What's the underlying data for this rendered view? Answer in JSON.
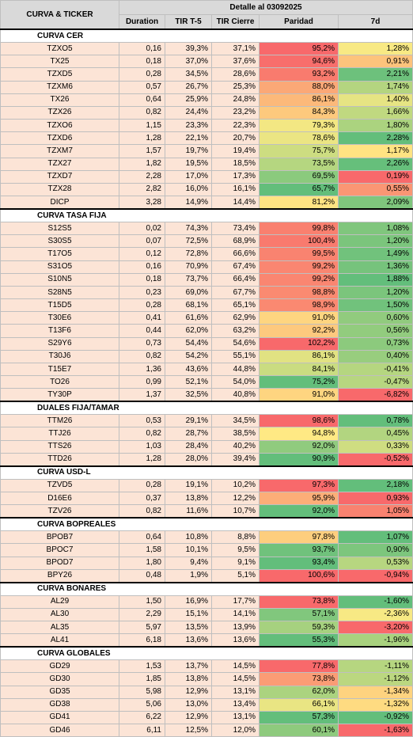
{
  "header": {
    "title_col": "CURVA & TICKER",
    "detail": "Detalle al 03092025",
    "columns": [
      "Duration",
      "TIR T-5",
      "TIR Cierre",
      "Paridad",
      "7d"
    ]
  },
  "sections": [
    {
      "title": "CURVA CER",
      "rows": [
        [
          "TZXO5",
          "0,16",
          "39,3%",
          "37,1%",
          "95,2%",
          "1,28%"
        ],
        [
          "TX25",
          "0,18",
          "37,0%",
          "37,6%",
          "94,6%",
          "0,91%"
        ],
        [
          "TZXD5",
          "0,28",
          "34,5%",
          "28,6%",
          "93,2%",
          "2,21%"
        ],
        [
          "TZXM6",
          "0,57",
          "26,7%",
          "25,3%",
          "88,0%",
          "1,74%"
        ],
        [
          "TX26",
          "0,64",
          "25,9%",
          "24,8%",
          "86,1%",
          "1,40%"
        ],
        [
          "TZX26",
          "0,82",
          "24,4%",
          "23,2%",
          "84,3%",
          "1,66%"
        ],
        [
          "TZXO6",
          "1,15",
          "23,3%",
          "22,3%",
          "79,3%",
          "1,80%"
        ],
        [
          "TZXD6",
          "1,28",
          "22,1%",
          "20,7%",
          "78,6%",
          "2,28%"
        ],
        [
          "TZXM7",
          "1,57",
          "19,7%",
          "19,4%",
          "75,7%",
          "1,17%"
        ],
        [
          "TZX27",
          "1,82",
          "19,5%",
          "18,5%",
          "73,5%",
          "2,26%"
        ],
        [
          "TZXD7",
          "2,28",
          "17,0%",
          "17,3%",
          "69,5%",
          "0,19%"
        ],
        [
          "TZX28",
          "2,82",
          "16,0%",
          "16,1%",
          "65,7%",
          "0,55%"
        ],
        [
          "DICP",
          "3,28",
          "14,9%",
          "14,4%",
          "81,2%",
          "2,09%"
        ]
      ]
    },
    {
      "title": "CURVA TASA FIJA",
      "rows": [
        [
          "S12S5",
          "0,02",
          "74,3%",
          "73,4%",
          "99,8%",
          "1,08%"
        ],
        [
          "S30S5",
          "0,07",
          "72,5%",
          "68,9%",
          "100,4%",
          "1,20%"
        ],
        [
          "T17O5",
          "0,12",
          "72,8%",
          "66,6%",
          "99,5%",
          "1,49%"
        ],
        [
          "S31O5",
          "0,16",
          "70,9%",
          "67,4%",
          "99,2%",
          "1,36%"
        ],
        [
          "S10N5",
          "0,18",
          "73,7%",
          "66,4%",
          "99,2%",
          "1,88%"
        ],
        [
          "S28N5",
          "0,23",
          "69,0%",
          "67,7%",
          "98,8%",
          "1,20%"
        ],
        [
          "T15D5",
          "0,28",
          "68,1%",
          "65,1%",
          "98,9%",
          "1,50%"
        ],
        [
          "T30E6",
          "0,41",
          "61,6%",
          "62,9%",
          "91,0%",
          "0,60%"
        ],
        [
          "T13F6",
          "0,44",
          "62,0%",
          "63,2%",
          "92,2%",
          "0,56%"
        ],
        [
          "S29Y6",
          "0,73",
          "54,4%",
          "54,6%",
          "102,2%",
          "0,73%"
        ],
        [
          "T30J6",
          "0,82",
          "54,2%",
          "55,1%",
          "86,1%",
          "0,40%"
        ],
        [
          "T15E7",
          "1,36",
          "43,6%",
          "44,8%",
          "84,1%",
          "-0,41%"
        ],
        [
          "TO26",
          "0,99",
          "52,1%",
          "54,0%",
          "75,2%",
          "-0,47%"
        ],
        [
          "TY30P",
          "1,37",
          "32,5%",
          "40,8%",
          "91,0%",
          "-6,82%"
        ]
      ]
    },
    {
      "title": "DUALES FIJA/TAMAR",
      "rows": [
        [
          "TTM26",
          "0,53",
          "29,1%",
          "34,5%",
          "98,6%",
          "0,78%"
        ],
        [
          "TTJ26",
          "0,82",
          "28,7%",
          "38,5%",
          "94,8%",
          "0,45%"
        ],
        [
          "TTS26",
          "1,03",
          "28,4%",
          "40,2%",
          "92,0%",
          "0,33%"
        ],
        [
          "TTD26",
          "1,28",
          "28,0%",
          "39,4%",
          "90,9%",
          "-0,52%"
        ]
      ]
    },
    {
      "title": "CURVA USD-L",
      "rows": [
        [
          "TZVD5",
          "0,28",
          "19,1%",
          "10,2%",
          "97,3%",
          "2,18%"
        ],
        [
          "D16E6",
          "0,37",
          "13,8%",
          "12,2%",
          "95,9%",
          "0,93%"
        ],
        [
          "TZV26",
          "0,82",
          "11,6%",
          "10,7%",
          "92,0%",
          "1,05%"
        ]
      ]
    },
    {
      "title": "CURVA BOPREALES",
      "rows": [
        [
          "BPOB7",
          "0,64",
          "10,8%",
          "8,8%",
          "97,8%",
          "1,07%"
        ],
        [
          "BPOC7",
          "1,58",
          "10,1%",
          "9,5%",
          "93,7%",
          "0,90%"
        ],
        [
          "BPOD7",
          "1,80",
          "9,4%",
          "9,1%",
          "93,4%",
          "0,53%"
        ],
        [
          "BPY26",
          "0,48",
          "1,9%",
          "5,1%",
          "100,6%",
          "-0,94%"
        ]
      ]
    },
    {
      "title": "CURVA BONARES",
      "rows": [
        [
          "AL29",
          "1,50",
          "16,9%",
          "17,7%",
          "73,8%",
          "-1,60%"
        ],
        [
          "AL30",
          "2,29",
          "15,1%",
          "14,1%",
          "57,1%",
          "-2,36%"
        ],
        [
          "AL35",
          "5,97",
          "13,5%",
          "13,9%",
          "59,3%",
          "-3,20%"
        ],
        [
          "AL41",
          "6,18",
          "13,6%",
          "13,6%",
          "55,3%",
          "-1,96%"
        ]
      ]
    },
    {
      "title": "CURVA GLOBALES",
      "rows": [
        [
          "GD29",
          "1,53",
          "13,7%",
          "14,5%",
          "77,8%",
          "-1,11%"
        ],
        [
          "GD30",
          "1,85",
          "13,8%",
          "14,5%",
          "73,8%",
          "-1,12%"
        ],
        [
          "GD35",
          "5,98",
          "12,9%",
          "13,1%",
          "62,0%",
          "-1,34%"
        ],
        [
          "GD38",
          "5,06",
          "13,0%",
          "13,4%",
          "66,1%",
          "-1,32%"
        ],
        [
          "GD41",
          "6,22",
          "12,9%",
          "13,1%",
          "57,3%",
          "-0,92%"
        ],
        [
          "GD46",
          "6,11",
          "12,5%",
          "12,0%",
          "60,1%",
          "-1,63%"
        ]
      ]
    }
  ]
}
